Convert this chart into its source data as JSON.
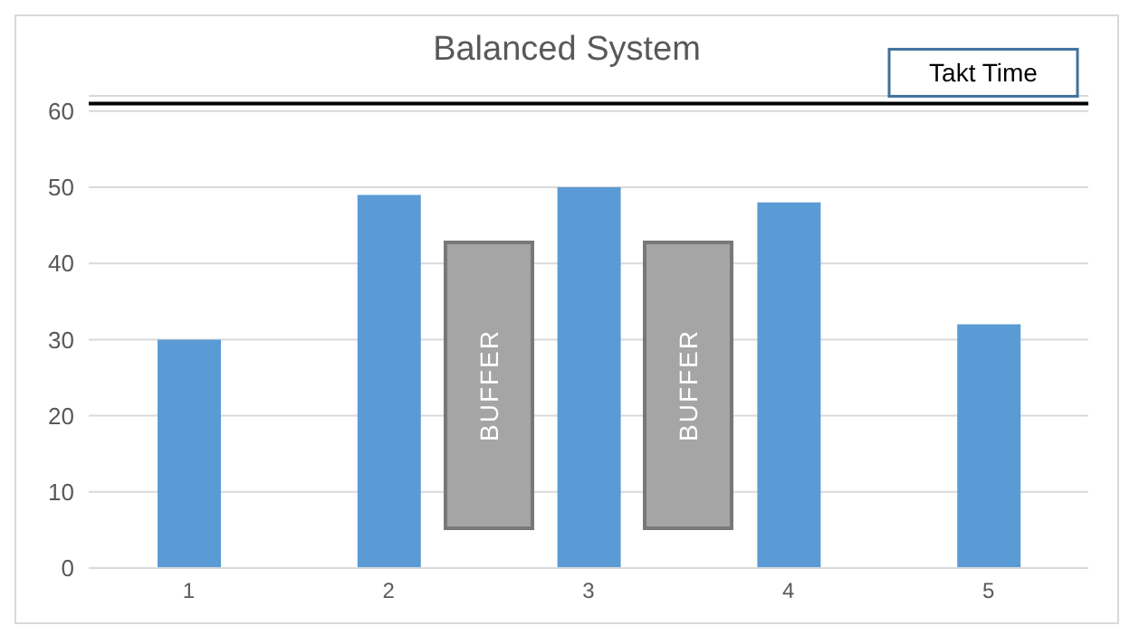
{
  "chart_data": {
    "type": "bar",
    "title": "Balanced System",
    "categories": [
      "1",
      "2",
      "3",
      "4",
      "5"
    ],
    "values": [
      30,
      49,
      50,
      48,
      32
    ],
    "color": "#5b9bd5",
    "ylim": [
      0,
      62
    ],
    "yticks": [
      0,
      10,
      20,
      30,
      40,
      50,
      60
    ],
    "grid": "y",
    "ref_lines": [
      {
        "axis": "y",
        "value": 61,
        "label": "Takt Time",
        "color": "#000000"
      }
    ],
    "annotations": [
      "BUFFER",
      "BUFFER"
    ]
  }
}
